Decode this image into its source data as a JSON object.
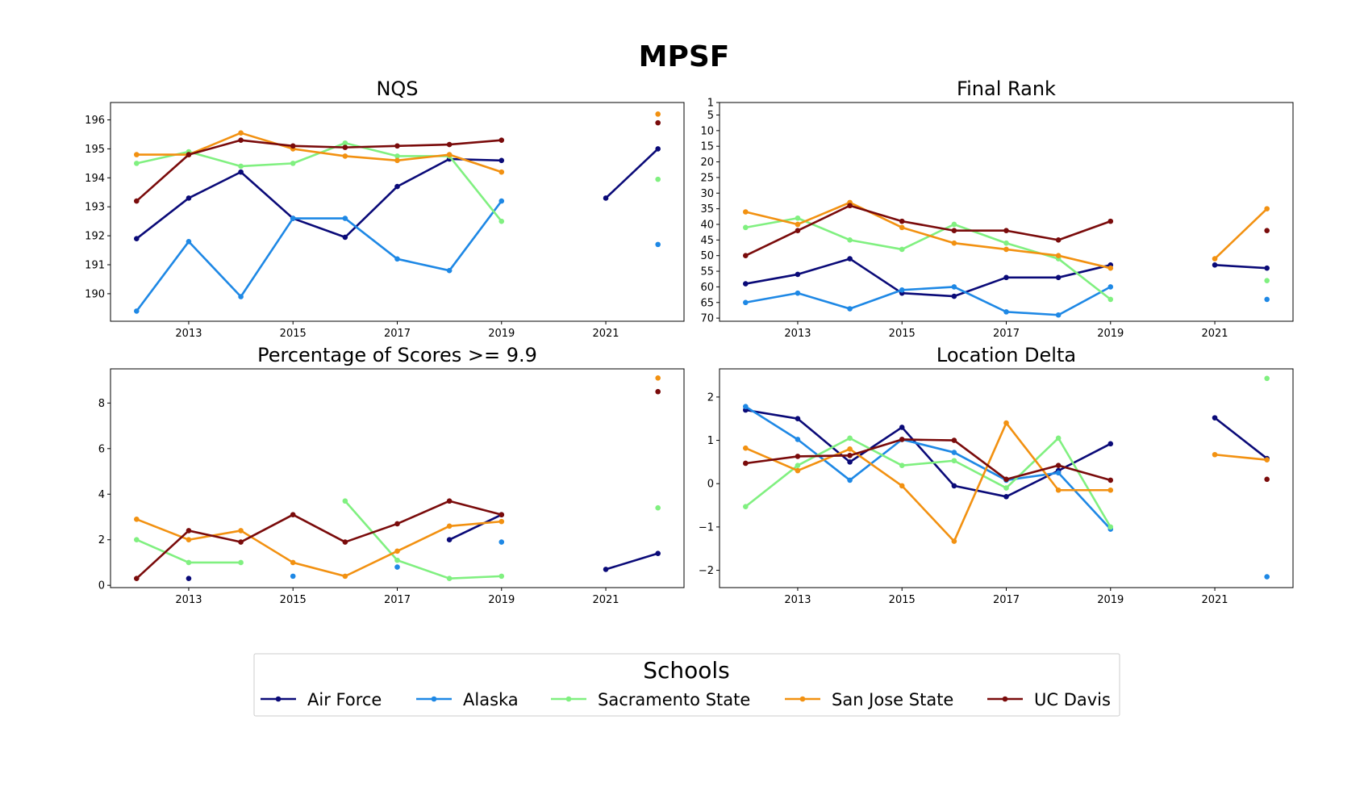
{
  "title": "MPSF",
  "legend": {
    "title": "Schools",
    "placement": "bottom-center"
  },
  "series_meta": [
    {
      "name": "Air Force",
      "color": "#0a0a78"
    },
    {
      "name": "Alaska",
      "color": "#1e88e5"
    },
    {
      "name": "Sacramento State",
      "color": "#80f080"
    },
    {
      "name": "San Jose State",
      "color": "#f29111"
    },
    {
      "name": "UC Davis",
      "color": "#7a0b0b"
    }
  ],
  "chart_data": [
    {
      "type": "line",
      "title": "NQS",
      "x": [
        2012,
        2013,
        2014,
        2015,
        2016,
        2017,
        2018,
        2019,
        2020,
        2021,
        2022
      ],
      "xticks": [
        2013,
        2015,
        2017,
        2019,
        2021
      ],
      "yticks": [
        190,
        191,
        192,
        193,
        194,
        195,
        196
      ],
      "ylim": [
        189.05,
        196.6
      ],
      "inverted": false,
      "series": [
        {
          "name": "Air Force",
          "values": [
            191.9,
            193.3,
            194.2,
            192.6,
            191.95,
            193.7,
            194.65,
            194.6,
            null,
            193.3,
            195.0
          ]
        },
        {
          "name": "Alaska",
          "values": [
            189.4,
            191.8,
            189.9,
            192.6,
            192.6,
            191.2,
            190.8,
            193.2,
            null,
            null,
            191.7
          ]
        },
        {
          "name": "Sacramento State",
          "values": [
            194.5,
            194.9,
            194.4,
            194.5,
            195.2,
            194.75,
            194.75,
            192.5,
            null,
            null,
            193.95
          ]
        },
        {
          "name": "San Jose State",
          "values": [
            194.8,
            194.8,
            195.55,
            195.0,
            194.75,
            194.6,
            194.8,
            194.2,
            null,
            null,
            196.2
          ]
        },
        {
          "name": "UC Davis",
          "values": [
            193.2,
            194.8,
            195.3,
            195.1,
            195.05,
            195.1,
            195.15,
            195.3,
            null,
            null,
            195.9
          ]
        }
      ]
    },
    {
      "type": "line",
      "title": "Final Rank",
      "x": [
        2012,
        2013,
        2014,
        2015,
        2016,
        2017,
        2018,
        2019,
        2020,
        2021,
        2022
      ],
      "xticks": [
        2013,
        2015,
        2017,
        2019,
        2021
      ],
      "yticks": [
        1,
        5,
        10,
        15,
        20,
        25,
        30,
        35,
        40,
        45,
        50,
        55,
        60,
        65,
        70
      ],
      "ylim": [
        71,
        1
      ],
      "inverted": true,
      "series": [
        {
          "name": "Air Force",
          "values": [
            59,
            56,
            51,
            62,
            63,
            57,
            57,
            53,
            null,
            53,
            54
          ]
        },
        {
          "name": "Alaska",
          "values": [
            65,
            62,
            67,
            61,
            60,
            68,
            69,
            60,
            null,
            null,
            64
          ]
        },
        {
          "name": "Sacramento State",
          "values": [
            41,
            38,
            45,
            48,
            40,
            46,
            51,
            64,
            null,
            null,
            58
          ]
        },
        {
          "name": "San Jose State",
          "values": [
            36,
            40,
            33,
            41,
            46,
            48,
            50,
            54,
            null,
            51,
            35
          ]
        },
        {
          "name": "UC Davis",
          "values": [
            50,
            42,
            34,
            39,
            42,
            42,
            45,
            39,
            null,
            null,
            42
          ]
        }
      ]
    },
    {
      "type": "line",
      "title": "Percentage of Scores >= 9.9",
      "x": [
        2012,
        2013,
        2014,
        2015,
        2016,
        2017,
        2018,
        2019,
        2020,
        2021,
        2022
      ],
      "xticks": [
        2013,
        2015,
        2017,
        2019,
        2021
      ],
      "yticks": [
        0,
        2,
        4,
        6,
        8
      ],
      "ylim": [
        -0.1,
        9.5
      ],
      "inverted": false,
      "series": [
        {
          "name": "Air Force",
          "values": [
            null,
            0.3,
            null,
            null,
            null,
            null,
            2.0,
            3.1,
            null,
            0.7,
            1.4
          ]
        },
        {
          "name": "Alaska",
          "values": [
            null,
            null,
            null,
            0.4,
            null,
            0.8,
            null,
            1.9,
            null,
            null,
            null
          ]
        },
        {
          "name": "Sacramento State",
          "values": [
            2.0,
            1.0,
            1.0,
            null,
            3.7,
            1.1,
            0.3,
            0.4,
            null,
            null,
            3.4
          ]
        },
        {
          "name": "San Jose State",
          "values": [
            2.9,
            2.0,
            2.4,
            1.0,
            0.4,
            1.5,
            2.6,
            2.8,
            null,
            null,
            9.1
          ]
        },
        {
          "name": "UC Davis",
          "values": [
            0.3,
            2.4,
            1.9,
            3.1,
            1.9,
            2.7,
            3.7,
            3.1,
            null,
            null,
            8.5
          ]
        }
      ]
    },
    {
      "type": "line",
      "title": "Location Delta",
      "x": [
        2012,
        2013,
        2014,
        2015,
        2016,
        2017,
        2018,
        2019,
        2020,
        2021,
        2022
      ],
      "xticks": [
        2013,
        2015,
        2017,
        2019,
        2021
      ],
      "yticks": [
        -2,
        -1,
        0,
        1,
        2
      ],
      "ylim": [
        -2.4,
        2.65
      ],
      "inverted": false,
      "series": [
        {
          "name": "Air Force",
          "values": [
            1.7,
            1.5,
            0.5,
            1.3,
            -0.05,
            -0.3,
            0.3,
            0.92,
            null,
            1.52,
            0.58
          ]
        },
        {
          "name": "Alaska",
          "values": [
            1.78,
            1.02,
            0.08,
            1.02,
            0.72,
            0.08,
            0.25,
            -1.05,
            null,
            null,
            -2.15
          ]
        },
        {
          "name": "Sacramento State",
          "values": [
            -0.53,
            0.42,
            1.05,
            0.42,
            0.53,
            -0.1,
            1.05,
            -1.0,
            null,
            null,
            2.43
          ]
        },
        {
          "name": "San Jose State",
          "values": [
            0.82,
            0.3,
            0.8,
            -0.05,
            -1.33,
            1.4,
            -0.15,
            -0.15,
            null,
            0.67,
            0.55
          ]
        },
        {
          "name": "UC Davis",
          "values": [
            0.47,
            0.63,
            0.65,
            1.02,
            1.0,
            0.1,
            0.42,
            0.08,
            null,
            null,
            0.1
          ]
        }
      ]
    }
  ]
}
